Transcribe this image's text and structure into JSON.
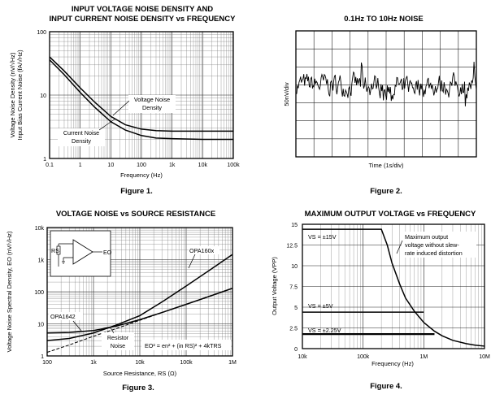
{
  "chart_data": [
    {
      "type": "line",
      "title_line1": "INPUT VOLTAGE NOISE DENSITY AND",
      "title_line2": "INPUT CURRENT NOISE DENSITY vs FREQUENCY",
      "figure": "Figure 1.",
      "xlabel": "Frequency (Hz)",
      "ylabel_1": "Voltage Noise Density (nV/√Hz)",
      "ylabel_2": "Input Bias Current Noise (fA/√Hz)",
      "xscale": "log",
      "yscale": "log",
      "xlim": [
        0.1,
        100000
      ],
      "ylim": [
        1,
        100
      ],
      "x_ticks": [
        "0.1",
        "1",
        "10",
        "100",
        "1k",
        "10k",
        "100k"
      ],
      "y_ticks": [
        "1",
        "10",
        "100"
      ],
      "series": [
        {
          "name": "Voltage Noise Density",
          "x": [
            0.1,
            0.3,
            1,
            3,
            10,
            30,
            100,
            300,
            1000,
            10000,
            100000
          ],
          "y": [
            40,
            24,
            13,
            7.7,
            4.6,
            3.4,
            2.9,
            2.75,
            2.7,
            2.7,
            2.7
          ]
        },
        {
          "name": "Current Noise Density",
          "x": [
            0.1,
            0.3,
            1,
            3,
            10,
            30,
            100,
            300,
            1000,
            10000,
            100000
          ],
          "y": [
            36,
            21,
            11,
            6.4,
            3.8,
            2.8,
            2.3,
            2.1,
            2.05,
            2.0,
            2.0
          ]
        }
      ],
      "annotations": [
        {
          "line1": "Voltage Noise",
          "line2": "Density"
        },
        {
          "line1": "Current Noise",
          "line2": "Density"
        }
      ]
    },
    {
      "type": "line",
      "title": "0.1Hz TO 10Hz NOISE",
      "figure": "Figure 2.",
      "xlabel": "Time (1s/div)",
      "ylabel": "50nV/div",
      "xdivs": 10,
      "ydivs": 7,
      "series": [
        {
          "name": "noise",
          "samples": 230,
          "center_div": 3.0,
          "amplitude_nV": 45
        }
      ]
    },
    {
      "type": "line",
      "title": "VOLTAGE NOISE vs SOURCE RESISTANCE",
      "figure": "Figure 3.",
      "xlabel": "Source Resistance, RS (Ω)",
      "ylabel": "Voltage Noise Spectral Density, EO (nV/√Hz)",
      "xscale": "log",
      "yscale": "log",
      "xlim": [
        100,
        1000000
      ],
      "ylim": [
        1,
        10000
      ],
      "x_ticks": [
        "100",
        "1k",
        "10k",
        "100k",
        "1M"
      ],
      "y_ticks": [
        "1",
        "10",
        "100",
        "1k",
        "10k"
      ],
      "series": [
        {
          "name": "OPA160x",
          "x": [
            100,
            300,
            1000,
            3000,
            10000,
            30000,
            100000,
            300000,
            1000000
          ],
          "y": [
            3.0,
            3.5,
            5.2,
            9.0,
            18,
            48,
            150,
            440,
            1450
          ]
        },
        {
          "name": "OPA1642",
          "x": [
            100,
            300,
            1000,
            3000,
            10000,
            30000,
            100000,
            300000,
            1000000
          ],
          "y": [
            5.2,
            5.4,
            6.2,
            8.4,
            13.5,
            22.5,
            40.5,
            70,
            128
          ]
        },
        {
          "name": "Resistor Noise",
          "x": [
            100,
            300,
            1000,
            3000,
            10000,
            30000,
            100000,
            300000,
            1000000
          ],
          "y": [
            1.3,
            2.2,
            4.1,
            7.0,
            12.9,
            22.3,
            40.7,
            70.5,
            128.7
          ]
        }
      ],
      "labels": {
        "opa160x": "OPA160x",
        "opa1642": "OPA1642",
        "resistor_l1": "Resistor",
        "resistor_l2": "Noise"
      },
      "equation": "EO² = en² + (in RS)² + 4kTRS",
      "inset": {
        "out_label": "EO",
        "rs_label": "RS"
      }
    },
    {
      "type": "line",
      "title": "MAXIMUM OUTPUT VOLTAGE vs FREQUENCY",
      "figure": "Figure 4.",
      "xlabel": "Frequency (Hz)",
      "ylabel": "Output Voltage (VPP)",
      "xscale": "log",
      "xlim": [
        10000,
        10000000
      ],
      "ylim": [
        0,
        15
      ],
      "x_ticks": [
        "10k",
        "100k",
        "1M",
        "10M"
      ],
      "y_ticks": [
        "0",
        "2.5",
        "5",
        "7.5",
        "10",
        "12.5",
        "15"
      ],
      "series": [
        {
          "name": "VS = ±15V",
          "x": [
            10000,
            200000,
            250000,
            300000,
            400000,
            500000,
            700000,
            1000000,
            1500000,
            2000000,
            3000000,
            5000000,
            7000000,
            10000000
          ],
          "y": [
            14.4,
            14.4,
            12.5,
            10.3,
            7.8,
            6.1,
            4.5,
            3.15,
            2.1,
            1.55,
            1.0,
            0.6,
            0.42,
            0.3
          ]
        },
        {
          "name": "VS = ±5V",
          "x": [
            10000,
            1000000
          ],
          "y": [
            4.4,
            4.4
          ]
        },
        {
          "name": "VS = ±2.25V",
          "x": [
            10000,
            1500000
          ],
          "y": [
            1.75,
            1.75
          ]
        }
      ],
      "labels": {
        "vs15": "VS = ±15V",
        "vs5": "VS = ±5V",
        "vs225": "VS = ±2.25V"
      },
      "annotation_lines": [
        "Maximum output",
        "voltage without slew-",
        "rate induced distortion"
      ]
    }
  ]
}
